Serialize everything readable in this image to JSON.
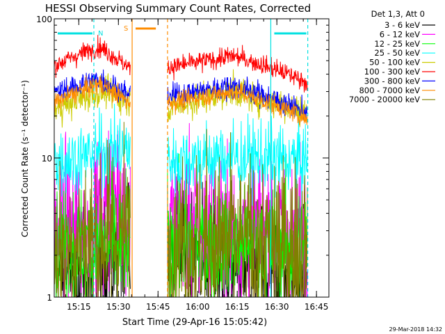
{
  "chart_data": {
    "type": "line",
    "title": "HESSI Observing Summary Count Rates, Corrected",
    "xlabel": "Start Time (29-Apr-16 15:05:42)",
    "ylabel": "Corrected Count Rate (s⁻¹ detector⁻¹)",
    "y_scale": "log",
    "ylim": [
      1,
      100
    ],
    "y_tick_labels": [
      "1",
      "10",
      "100"
    ],
    "x_tick_labels": [
      "15:15",
      "15:30",
      "15:45",
      "16:00",
      "16:15",
      "16:30",
      "16:45"
    ],
    "x_tick_minutes": [
      9.3,
      24.3,
      39.3,
      54.3,
      69.3,
      84.3,
      99.3
    ],
    "xlim_minutes": [
      0,
      104
    ],
    "legend_title": "Det 1,3, Att 0",
    "legend_position": "right",
    "date_stamp": "29-Mar-2018 14:32",
    "flags": [
      {
        "label": "N",
        "color": "#00e0e0",
        "x_start": 0,
        "x_end": 15
      },
      {
        "label": "",
        "color": "#00e0e0",
        "x_start": 82,
        "x_end": 96
      },
      {
        "label": "S",
        "color": "#ff8c00",
        "x_start": 29.5,
        "x_end": 39
      }
    ],
    "gap_minutes": [
      28.8,
      42.9
    ],
    "night_markers": [
      {
        "color": "#00e0e0",
        "x": 15,
        "style": "dashed"
      },
      {
        "color": "#00e0e0",
        "x": 82,
        "style": "solid"
      },
      {
        "color": "#00e0e0",
        "x": 96,
        "style": "dashed"
      },
      {
        "color": "#ff8c00",
        "x": 29.5,
        "style": "solid"
      },
      {
        "color": "#ff8c00",
        "x": 42.9,
        "style": "dashed"
      }
    ],
    "series": [
      {
        "name": "3 - 6 keV",
        "color": "#000000",
        "x": [
          0,
          15,
          28.5,
          44,
          66,
          96
        ],
        "y": [
          1.6,
          1.6,
          2.2,
          2.5,
          1.6,
          1.4
        ],
        "noise": 0.35
      },
      {
        "name": "6 - 12 keV",
        "color": "#ff00ff",
        "x": [
          0,
          15,
          25,
          28.5,
          44,
          66,
          96
        ],
        "y": [
          2.8,
          3.2,
          6,
          3,
          3.5,
          3,
          2.8
        ],
        "noise": 0.4
      },
      {
        "name": "12 - 25 keV",
        "color": "#00ff00",
        "x": [
          0,
          15,
          28.5,
          44,
          66,
          96
        ],
        "y": [
          2.3,
          2.4,
          2.3,
          2.3,
          2.3,
          2.3
        ],
        "noise": 0.3
      },
      {
        "name": "25 - 50 keV",
        "color": "#00ffff",
        "x": [
          0,
          10,
          18,
          28.5,
          44,
          66,
          96
        ],
        "y": [
          9.5,
          10,
          11,
          11.5,
          9.5,
          10,
          9.5
        ],
        "noise": 0.18
      },
      {
        "name": "50 - 100 keV",
        "color": "#cccc00",
        "x": [
          0,
          18,
          28.5,
          44,
          68,
          96
        ],
        "y": [
          22,
          30,
          26,
          23,
          30,
          21
        ],
        "noise": 0.08
      },
      {
        "name": "100 - 300 keV",
        "color": "#ff0000",
        "x": [
          0,
          17,
          28.5,
          44,
          68,
          96
        ],
        "y": [
          46,
          63,
          44,
          45,
          54,
          35
        ],
        "noise": 0.05
      },
      {
        "name": "300 - 800 keV",
        "color": "#0000ff",
        "x": [
          0,
          17,
          28.5,
          44,
          68,
          96
        ],
        "y": [
          29,
          37,
          28,
          28,
          33,
          21
        ],
        "noise": 0.06
      },
      {
        "name": "800 - 7000 keV",
        "color": "#ff8c00",
        "x": [
          0,
          17,
          28.5,
          44,
          68,
          96
        ],
        "y": [
          25,
          34,
          25,
          25,
          30,
          19
        ],
        "noise": 0.05
      },
      {
        "name": "7000 - 20000 keV",
        "color": "#808000",
        "x": [
          0,
          15,
          28.5,
          44,
          66,
          96
        ],
        "y": [
          2.2,
          2.6,
          2.8,
          2.7,
          2.4,
          2.2
        ],
        "noise": 0.45
      }
    ]
  }
}
